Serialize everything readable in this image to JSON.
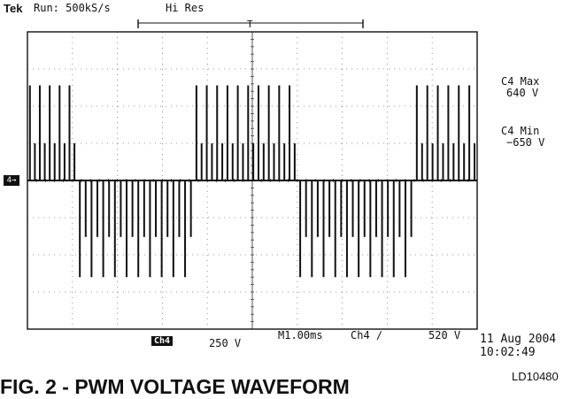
{
  "header": {
    "brand": "Tek",
    "run_status": "Run: 500kS/s",
    "acq_mode": "Hi Res",
    "trigger_marker": "T"
  },
  "measurements": [
    {
      "label": "C4 Max",
      "value": "640 V"
    },
    {
      "label": "C4 Min",
      "value": "−650 V"
    }
  ],
  "channel": {
    "marker": "4→",
    "badge": "Ch4",
    "scale": "250 V"
  },
  "timebase": "M1.00ms",
  "trigger": {
    "source": "Ch4 ∕",
    "level": "520 V"
  },
  "timestamp": {
    "date": "11 Aug 2004",
    "time": "10:02:49"
  },
  "reference_id": "LD10480",
  "figure_title": "FIG. 2 - PWM VOLTAGE WAVEFORM",
  "chart_data": {
    "type": "line",
    "title": "",
    "xlabel": "",
    "ylabel": "",
    "x_unit": "ms",
    "y_unit": "V",
    "xlim": [
      0,
      10
    ],
    "ylim": [
      -1000,
      1000
    ],
    "grid": true,
    "divisions": {
      "x": 10,
      "y": 8
    },
    "series": [
      {
        "channel": "Ch4",
        "bursts": [
          {
            "x_start": 0.0,
            "x_end": 1.1,
            "polarity": 1,
            "levels": [
              640,
              250
            ],
            "pulses": 10
          },
          {
            "x_start": 1.1,
            "x_end": 3.7,
            "polarity": -1,
            "levels": [
              -650,
              -380
            ],
            "pulses": 20
          },
          {
            "x_start": 3.7,
            "x_end": 6.0,
            "polarity": 1,
            "levels": [
              640,
              250
            ],
            "pulses": 20
          },
          {
            "x_start": 6.0,
            "x_end": 8.6,
            "polarity": -1,
            "levels": [
              -650,
              -380
            ],
            "pulses": 20
          },
          {
            "x_start": 8.6,
            "x_end": 10.0,
            "polarity": 1,
            "levels": [
              640,
              250
            ],
            "pulses": 12
          }
        ]
      }
    ]
  }
}
